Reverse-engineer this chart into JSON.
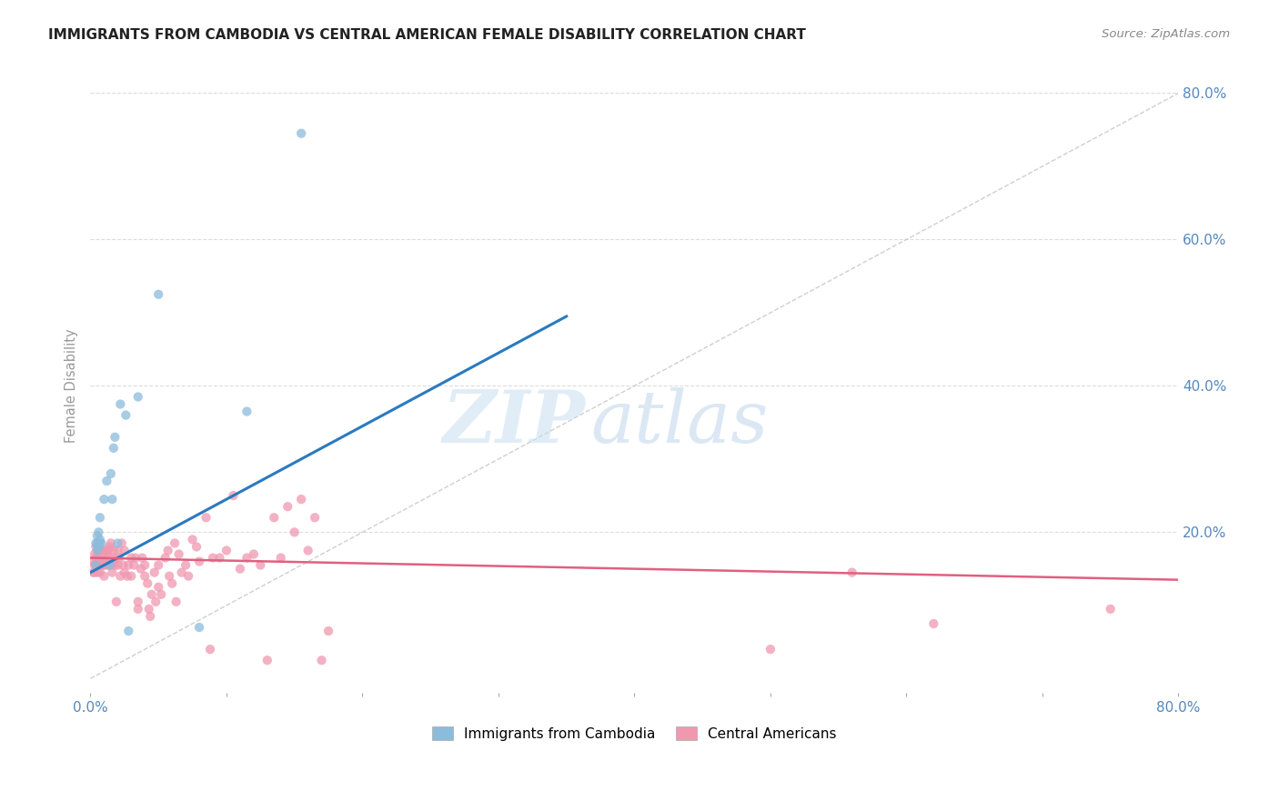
{
  "title": "IMMIGRANTS FROM CAMBODIA VS CENTRAL AMERICAN FEMALE DISABILITY CORRELATION CHART",
  "source": "Source: ZipAtlas.com",
  "ylabel": "Female Disability",
  "watermark_zip": "ZIP",
  "watermark_atlas": "atlas",
  "xlim": [
    0.0,
    0.8
  ],
  "ylim": [
    -0.02,
    0.82
  ],
  "xticks": [
    0.0,
    0.1,
    0.2,
    0.3,
    0.4,
    0.5,
    0.6,
    0.7,
    0.8
  ],
  "xticklabels": [
    "0.0%",
    "",
    "",
    "",
    "",
    "",
    "",
    "",
    "80.0%"
  ],
  "yticks": [
    0.0,
    0.2,
    0.4,
    0.6,
    0.8
  ],
  "yticklabels": [
    "",
    "20.0%",
    "40.0%",
    "60.0%",
    "80.0%"
  ],
  "cambodia_color": "#8bbcdc",
  "central_color": "#f098b0",
  "trendline_cambodia_color": "#2a7abf",
  "trendline_central_color": "#e06080",
  "diag_color": "#bbbbbb",
  "grid_color": "#dddddd",
  "axis_color": "#5588bb",
  "title_color": "#222222",
  "source_color": "#888888",
  "cambodia_points": [
    [
      0.004,
      0.155
    ],
    [
      0.004,
      0.185
    ],
    [
      0.005,
      0.175
    ],
    [
      0.005,
      0.195
    ],
    [
      0.005,
      0.185
    ],
    [
      0.006,
      0.2
    ],
    [
      0.006,
      0.18
    ],
    [
      0.007,
      0.22
    ],
    [
      0.007,
      0.185
    ],
    [
      0.007,
      0.19
    ],
    [
      0.008,
      0.185
    ],
    [
      0.01,
      0.245
    ],
    [
      0.012,
      0.27
    ],
    [
      0.014,
      0.155
    ],
    [
      0.015,
      0.28
    ],
    [
      0.016,
      0.245
    ],
    [
      0.017,
      0.315
    ],
    [
      0.018,
      0.33
    ],
    [
      0.02,
      0.185
    ],
    [
      0.022,
      0.375
    ],
    [
      0.026,
      0.36
    ],
    [
      0.028,
      0.065
    ],
    [
      0.035,
      0.385
    ],
    [
      0.05,
      0.525
    ],
    [
      0.08,
      0.07
    ],
    [
      0.115,
      0.365
    ],
    [
      0.155,
      0.745
    ]
  ],
  "central_points": [
    [
      0.002,
      0.145
    ],
    [
      0.002,
      0.16
    ],
    [
      0.003,
      0.17
    ],
    [
      0.003,
      0.155
    ],
    [
      0.003,
      0.145
    ],
    [
      0.004,
      0.18
    ],
    [
      0.004,
      0.165
    ],
    [
      0.004,
      0.155
    ],
    [
      0.005,
      0.175
    ],
    [
      0.005,
      0.165
    ],
    [
      0.005,
      0.155
    ],
    [
      0.005,
      0.145
    ],
    [
      0.006,
      0.175
    ],
    [
      0.006,
      0.165
    ],
    [
      0.006,
      0.155
    ],
    [
      0.007,
      0.17
    ],
    [
      0.007,
      0.16
    ],
    [
      0.007,
      0.145
    ],
    [
      0.008,
      0.175
    ],
    [
      0.008,
      0.165
    ],
    [
      0.009,
      0.17
    ],
    [
      0.009,
      0.155
    ],
    [
      0.01,
      0.165
    ],
    [
      0.01,
      0.155
    ],
    [
      0.01,
      0.14
    ],
    [
      0.011,
      0.175
    ],
    [
      0.011,
      0.16
    ],
    [
      0.012,
      0.175
    ],
    [
      0.012,
      0.165
    ],
    [
      0.012,
      0.155
    ],
    [
      0.013,
      0.175
    ],
    [
      0.013,
      0.16
    ],
    [
      0.014,
      0.18
    ],
    [
      0.014,
      0.155
    ],
    [
      0.015,
      0.185
    ],
    [
      0.015,
      0.165
    ],
    [
      0.016,
      0.155
    ],
    [
      0.016,
      0.145
    ],
    [
      0.017,
      0.175
    ],
    [
      0.017,
      0.16
    ],
    [
      0.018,
      0.165
    ],
    [
      0.018,
      0.155
    ],
    [
      0.019,
      0.105
    ],
    [
      0.02,
      0.155
    ],
    [
      0.02,
      0.175
    ],
    [
      0.021,
      0.165
    ],
    [
      0.022,
      0.14
    ],
    [
      0.023,
      0.185
    ],
    [
      0.024,
      0.155
    ],
    [
      0.025,
      0.145
    ],
    [
      0.025,
      0.175
    ],
    [
      0.027,
      0.14
    ],
    [
      0.028,
      0.155
    ],
    [
      0.03,
      0.165
    ],
    [
      0.03,
      0.14
    ],
    [
      0.032,
      0.155
    ],
    [
      0.033,
      0.165
    ],
    [
      0.035,
      0.095
    ],
    [
      0.035,
      0.105
    ],
    [
      0.037,
      0.15
    ],
    [
      0.038,
      0.165
    ],
    [
      0.04,
      0.155
    ],
    [
      0.04,
      0.14
    ],
    [
      0.042,
      0.13
    ],
    [
      0.043,
      0.095
    ],
    [
      0.044,
      0.085
    ],
    [
      0.045,
      0.115
    ],
    [
      0.047,
      0.145
    ],
    [
      0.048,
      0.105
    ],
    [
      0.05,
      0.155
    ],
    [
      0.05,
      0.125
    ],
    [
      0.052,
      0.115
    ],
    [
      0.055,
      0.165
    ],
    [
      0.057,
      0.175
    ],
    [
      0.058,
      0.14
    ],
    [
      0.06,
      0.13
    ],
    [
      0.062,
      0.185
    ],
    [
      0.063,
      0.105
    ],
    [
      0.065,
      0.17
    ],
    [
      0.067,
      0.145
    ],
    [
      0.07,
      0.155
    ],
    [
      0.072,
      0.14
    ],
    [
      0.075,
      0.19
    ],
    [
      0.078,
      0.18
    ],
    [
      0.08,
      0.16
    ],
    [
      0.085,
      0.22
    ],
    [
      0.088,
      0.04
    ],
    [
      0.09,
      0.165
    ],
    [
      0.095,
      0.165
    ],
    [
      0.1,
      0.175
    ],
    [
      0.105,
      0.25
    ],
    [
      0.11,
      0.15
    ],
    [
      0.115,
      0.165
    ],
    [
      0.12,
      0.17
    ],
    [
      0.125,
      0.155
    ],
    [
      0.13,
      0.025
    ],
    [
      0.135,
      0.22
    ],
    [
      0.14,
      0.165
    ],
    [
      0.145,
      0.235
    ],
    [
      0.15,
      0.2
    ],
    [
      0.155,
      0.245
    ],
    [
      0.16,
      0.175
    ],
    [
      0.165,
      0.22
    ],
    [
      0.17,
      0.025
    ],
    [
      0.175,
      0.065
    ],
    [
      0.5,
      0.04
    ],
    [
      0.56,
      0.145
    ],
    [
      0.62,
      0.075
    ],
    [
      0.75,
      0.095
    ]
  ],
  "cambodia_trend_x": [
    0.0,
    0.35
  ],
  "cambodia_trend_y": [
    0.145,
    0.495
  ],
  "central_trend_x": [
    0.0,
    0.8
  ],
  "central_trend_y": [
    0.165,
    0.135
  ],
  "marker_size": 55,
  "marker_alpha": 0.75
}
